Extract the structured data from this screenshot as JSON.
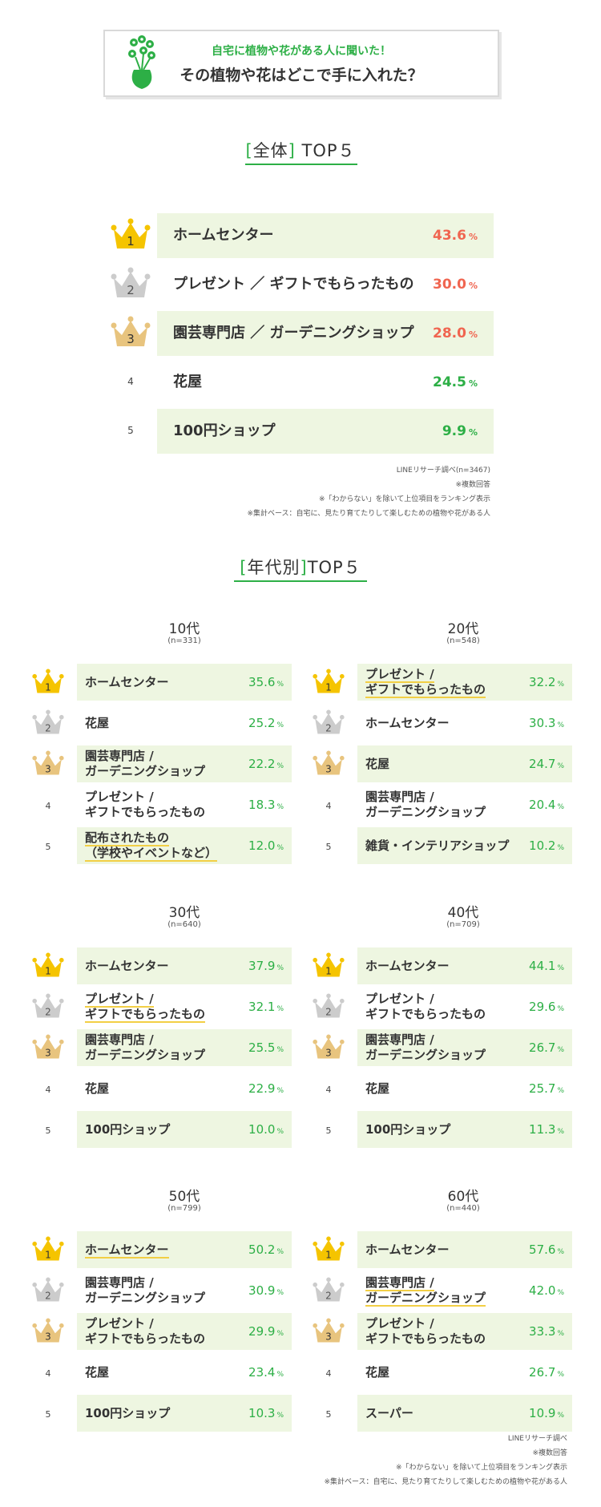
{
  "header": {
    "subtitle": "自宅に植物や花がある人に聞いた！",
    "title": "その植物や花はどこで手に入れた？"
  },
  "overall": {
    "title_bracket_open": "[",
    "title_word": "全体",
    "title_bracket_close": "]",
    "title_suffix": "TOP５"
  },
  "by_age": {
    "title_bracket_open": "[",
    "title_word": "年代別",
    "title_bracket_close": "]",
    "title_suffix": "TOP５"
  },
  "notes_overall": [
    "LINEリサーチ調べ(n=3467)",
    "※複数回答",
    "※「わからない」を除いて上位項目をランキング表示",
    "※集計ベース：自宅に、見たり育てたりして楽しむための植物や花がある人"
  ],
  "notes_bottom": [
    "LINEリサーチ調べ",
    "※複数回答",
    "※「わからない」を除いて上位項目をランキング表示",
    "※集計ベース：自宅に、見たり育てたりして楽しむための植物や花がある人"
  ],
  "colors": {
    "green": "#2daf46",
    "top_red": "#f06550",
    "row_shade": "#eef6e1",
    "gold": "#f5c400",
    "silver": "#cccccc",
    "bronze": "#e8c47e",
    "highlight": "#f2cf45"
  },
  "chart_data": [
    {
      "type": "table",
      "title": "[全体] TOP５",
      "ranks": [
        "1",
        "2",
        "3",
        "4",
        "5"
      ],
      "categories": [
        "ホームセンター",
        "プレゼント ／ ギフトでもらったもの",
        "園芸専門店 ／ ガーデニングショップ",
        "花屋",
        "100円ショップ"
      ],
      "values": [
        43.6,
        30.0,
        28.0,
        24.5,
        9.9
      ],
      "value_labels": [
        "43.6",
        "30.0",
        "28.0",
        "24.5",
        "9.9"
      ],
      "unit": "%"
    },
    {
      "type": "table",
      "title": "10代",
      "sample": "(n=331)",
      "ranks": [
        "1",
        "2",
        "3",
        "4",
        "5"
      ],
      "categories": [
        [
          "ホームセンター"
        ],
        [
          "花屋"
        ],
        [
          "園芸専門店 /",
          "ガーデニングショップ"
        ],
        [
          "プレゼント /",
          "ギフトでもらったもの"
        ],
        [
          "配布されたもの",
          "（学校やイベントなど）"
        ]
      ],
      "values": [
        35.6,
        25.2,
        22.2,
        18.3,
        12.0
      ],
      "value_labels": [
        "35.6",
        "25.2",
        "22.2",
        "18.3",
        "12.0"
      ],
      "highlighted": [
        false,
        false,
        false,
        false,
        true
      ],
      "unit": "%"
    },
    {
      "type": "table",
      "title": "20代",
      "sample": "(n=548)",
      "ranks": [
        "1",
        "2",
        "3",
        "4",
        "5"
      ],
      "categories": [
        [
          "プレゼント /",
          "ギフトでもらったもの"
        ],
        [
          "ホームセンター"
        ],
        [
          "花屋"
        ],
        [
          "園芸専門店 /",
          "ガーデニングショップ"
        ],
        [
          "雑貨・インテリアショップ"
        ]
      ],
      "values": [
        32.2,
        30.3,
        24.7,
        20.4,
        10.2
      ],
      "value_labels": [
        "32.2",
        "30.3",
        "24.7",
        "20.4",
        "10.2"
      ],
      "highlighted": [
        true,
        false,
        false,
        false,
        false
      ],
      "unit": "%"
    },
    {
      "type": "table",
      "title": "30代",
      "sample": "(n=640)",
      "ranks": [
        "1",
        "2",
        "3",
        "4",
        "5"
      ],
      "categories": [
        [
          "ホームセンター"
        ],
        [
          "プレゼント /",
          "ギフトでもらったもの"
        ],
        [
          "園芸専門店 /",
          "ガーデニングショップ"
        ],
        [
          "花屋"
        ],
        [
          "100円ショップ"
        ]
      ],
      "values": [
        37.9,
        32.1,
        25.5,
        22.9,
        10.0
      ],
      "value_labels": [
        "37.9",
        "32.1",
        "25.5",
        "22.9",
        "10.0"
      ],
      "highlighted": [
        false,
        true,
        false,
        false,
        false
      ],
      "unit": "%"
    },
    {
      "type": "table",
      "title": "40代",
      "sample": "(n=709)",
      "ranks": [
        "1",
        "2",
        "3",
        "4",
        "5"
      ],
      "categories": [
        [
          "ホームセンター"
        ],
        [
          "プレゼント /",
          "ギフトでもらったもの"
        ],
        [
          "園芸専門店 /",
          "ガーデニングショップ"
        ],
        [
          "花屋"
        ],
        [
          "100円ショップ"
        ]
      ],
      "values": [
        44.1,
        29.6,
        26.7,
        25.7,
        11.3
      ],
      "value_labels": [
        "44.1",
        "29.6",
        "26.7",
        "25.7",
        "11.3"
      ],
      "highlighted": [
        false,
        false,
        false,
        false,
        false
      ],
      "unit": "%"
    },
    {
      "type": "table",
      "title": "50代",
      "sample": "(n=799)",
      "ranks": [
        "1",
        "2",
        "3",
        "4",
        "5"
      ],
      "categories": [
        [
          "ホームセンター"
        ],
        [
          "園芸専門店 /",
          "ガーデニングショップ"
        ],
        [
          "プレゼント /",
          "ギフトでもらったもの"
        ],
        [
          "花屋"
        ],
        [
          "100円ショップ"
        ]
      ],
      "values": [
        50.2,
        30.9,
        29.9,
        23.4,
        10.3
      ],
      "value_labels": [
        "50.2",
        "30.9",
        "29.9",
        "23.4",
        "10.3"
      ],
      "highlighted": [
        true,
        false,
        false,
        false,
        false
      ],
      "unit": "%"
    },
    {
      "type": "table",
      "title": "60代",
      "sample": "(n=440)",
      "ranks": [
        "1",
        "2",
        "3",
        "4",
        "5"
      ],
      "categories": [
        [
          "ホームセンター"
        ],
        [
          "園芸専門店 /",
          "ガーデニングショップ"
        ],
        [
          "プレゼント /",
          "ギフトでもらったもの"
        ],
        [
          "花屋"
        ],
        [
          "スーパー"
        ]
      ],
      "values": [
        57.6,
        42.0,
        33.3,
        26.7,
        10.9
      ],
      "value_labels": [
        "57.6",
        "42.0",
        "33.3",
        "26.7",
        "10.9"
      ],
      "highlighted": [
        false,
        true,
        false,
        false,
        false
      ],
      "unit": "%"
    }
  ]
}
